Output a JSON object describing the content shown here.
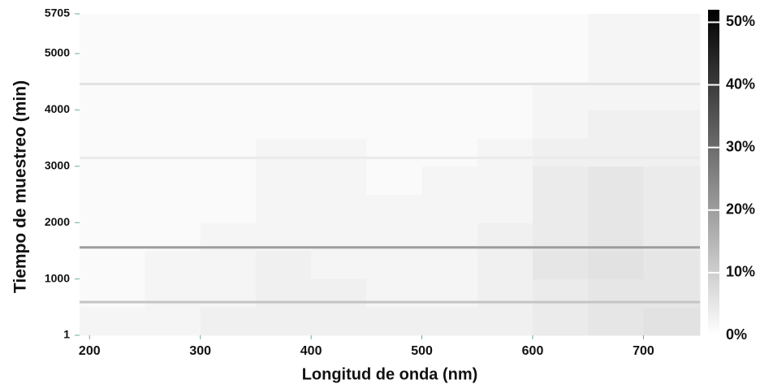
{
  "chart_data": {
    "type": "heatmap",
    "xlabel": "Longitud de onda (nm)",
    "ylabel": "Tiempo de muestreo (min)",
    "xlim": [
      191,
      751
    ],
    "xticks": [
      200,
      300,
      400,
      500,
      600,
      700
    ],
    "ylim": [
      1,
      5705
    ],
    "yticks": [
      1,
      1000,
      2000,
      3000,
      4000,
      5000,
      5705
    ],
    "x_edges": [
      191,
      250,
      300,
      350,
      400,
      450,
      500,
      550,
      600,
      650,
      700,
      751
    ],
    "y_edges": [
      1,
      500,
      1000,
      1500,
      2000,
      2500,
      3000,
      3500,
      4000,
      4500,
      5000,
      5705
    ],
    "z": [
      [
        2,
        2,
        3,
        3,
        3,
        3,
        3,
        3,
        4,
        5,
        6
      ],
      [
        1,
        2,
        2,
        3,
        3,
        2,
        2,
        3,
        4,
        5,
        5
      ],
      [
        1,
        2,
        2,
        3,
        2,
        2,
        2,
        3,
        5,
        6,
        5
      ],
      [
        1,
        1,
        2,
        2,
        2,
        2,
        2,
        3,
        4,
        5,
        4
      ],
      [
        1,
        1,
        1,
        2,
        2,
        2,
        2,
        2,
        4,
        5,
        4
      ],
      [
        1,
        1,
        1,
        2,
        2,
        1,
        2,
        2,
        4,
        5,
        4
      ],
      [
        1,
        1,
        1,
        2,
        2,
        1,
        1,
        2,
        3,
        3,
        3
      ],
      [
        1,
        1,
        1,
        1,
        1,
        1,
        1,
        1,
        2,
        3,
        3
      ],
      [
        1,
        1,
        1,
        1,
        1,
        1,
        1,
        1,
        2,
        2,
        2
      ],
      [
        1,
        1,
        1,
        1,
        1,
        1,
        1,
        1,
        1,
        2,
        2
      ],
      [
        1,
        1,
        1,
        1,
        1,
        1,
        1,
        1,
        1,
        2,
        2
      ]
    ],
    "lines": [
      {
        "y": 1560,
        "value": 20
      },
      {
        "y": 590,
        "value": 12
      },
      {
        "y": 4460,
        "value": 6
      },
      {
        "y": 3150,
        "value": 4
      }
    ],
    "zlim": [
      0,
      52
    ],
    "colorbar_ticks": [
      {
        "value": 0,
        "label": "0%"
      },
      {
        "value": 10,
        "label": "10%"
      },
      {
        "value": 20,
        "label": "20%"
      },
      {
        "value": 30,
        "label": "30%"
      },
      {
        "value": 40,
        "label": "40%"
      },
      {
        "value": 50,
        "label": "50%"
      }
    ]
  }
}
